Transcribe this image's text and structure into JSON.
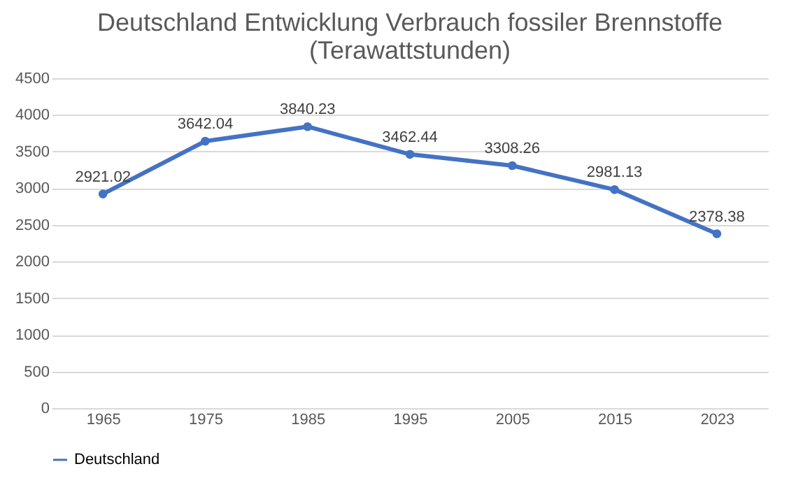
{
  "chart_data": {
    "type": "line",
    "title": "Deutschland Entwicklung Verbrauch fossiler Brennstoffe\n(Terawattstunden)",
    "categories": [
      "1965",
      "1975",
      "1985",
      "1995",
      "2005",
      "2015",
      "2023"
    ],
    "series": [
      {
        "name": "Deutschland",
        "color": "#4472c4",
        "values": [
          2921.02,
          3642.04,
          3840.23,
          3462.44,
          3308.26,
          2981.13,
          2378.38
        ]
      }
    ],
    "ylim": [
      0,
      4500
    ],
    "yticks": [
      0,
      500,
      1000,
      1500,
      2000,
      2500,
      3000,
      3500,
      4000,
      4500
    ],
    "grid": "y",
    "legend": "bottom",
    "marker": "circle",
    "line_style": "solid",
    "data_labels": true
  }
}
